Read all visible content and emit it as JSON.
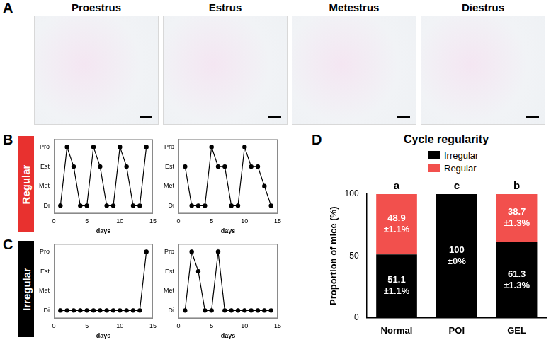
{
  "panels": [
    {
      "letter": "A",
      "images": [
        "Proestrus",
        "Estrus",
        "Metestrus",
        "Diestrus"
      ]
    },
    {
      "letter": "B",
      "label": "Regular",
      "color": "#e8312f"
    },
    {
      "letter": "C",
      "label": "Irregular",
      "color": "#000000"
    },
    {
      "letter": "D"
    }
  ],
  "chart_data": [
    {
      "panel": "B",
      "type": "line",
      "x": [
        1,
        2,
        3,
        4,
        5,
        6,
        7,
        8,
        9,
        10,
        11,
        12,
        13,
        14
      ],
      "values": [
        1,
        4,
        3,
        1,
        1,
        4,
        3,
        1,
        1,
        4,
        3,
        1,
        1,
        4
      ],
      "x_label": "days",
      "xlim": [
        0,
        15
      ],
      "xticks": [
        0,
        5,
        10,
        15
      ],
      "ylim": [
        0.6,
        4.4
      ],
      "yticks": [
        {
          "value": 1,
          "label": "Di"
        },
        {
          "value": 2,
          "label": "Met"
        },
        {
          "value": 3,
          "label": "Est"
        },
        {
          "value": 4,
          "label": "Pro"
        }
      ],
      "color": "#000000",
      "marker": "circle",
      "grid": false
    },
    {
      "panel": "B",
      "type": "line",
      "x": [
        1,
        2,
        3,
        4,
        5,
        6,
        7,
        8,
        9,
        10,
        11,
        12,
        13,
        14
      ],
      "values": [
        3,
        1,
        1,
        1,
        4,
        3,
        3,
        1,
        1,
        4,
        3,
        3,
        2,
        1
      ],
      "x_label": "days",
      "xlim": [
        0,
        15
      ],
      "xticks": [
        0,
        5,
        10,
        15
      ],
      "ylim": [
        0.6,
        4.4
      ],
      "yticks": [
        {
          "value": 1,
          "label": "Di"
        },
        {
          "value": 2,
          "label": "Met"
        },
        {
          "value": 3,
          "label": "Est"
        },
        {
          "value": 4,
          "label": "Pro"
        }
      ],
      "color": "#000000",
      "marker": "circle",
      "grid": false
    },
    {
      "panel": "C",
      "type": "line",
      "x": [
        1,
        2,
        3,
        4,
        5,
        6,
        7,
        8,
        9,
        10,
        11,
        12,
        13,
        14
      ],
      "values": [
        1,
        1,
        1,
        1,
        1,
        1,
        1,
        1,
        1,
        1,
        1,
        1,
        1,
        4
      ],
      "x_label": "days",
      "xlim": [
        0,
        15
      ],
      "xticks": [
        0,
        5,
        10,
        15
      ],
      "ylim": [
        0.6,
        4.4
      ],
      "yticks": [
        {
          "value": 1,
          "label": "Di"
        },
        {
          "value": 2,
          "label": "Met"
        },
        {
          "value": 3,
          "label": "Est"
        },
        {
          "value": 4,
          "label": "Pro"
        }
      ],
      "color": "#000000",
      "marker": "circle",
      "grid": false
    },
    {
      "panel": "C",
      "type": "line",
      "x": [
        1,
        2,
        3,
        4,
        5,
        6,
        7,
        8,
        9,
        10,
        11,
        12,
        13,
        14
      ],
      "values": [
        1,
        4,
        3,
        1,
        1,
        4,
        1,
        1,
        1,
        1,
        1,
        1,
        1,
        1
      ],
      "x_label": "days",
      "xlim": [
        0,
        15
      ],
      "xticks": [
        0,
        5,
        10,
        15
      ],
      "ylim": [
        0.6,
        4.4
      ],
      "yticks": [
        {
          "value": 1,
          "label": "Di"
        },
        {
          "value": 2,
          "label": "Met"
        },
        {
          "value": 3,
          "label": "Est"
        },
        {
          "value": 4,
          "label": "Pro"
        }
      ],
      "color": "#000000",
      "marker": "circle",
      "grid": false
    },
    {
      "panel": "D",
      "type": "bar",
      "title": "Cycle regularity",
      "categories": [
        "Normal",
        "POI",
        "GEL"
      ],
      "stacked": true,
      "series": [
        {
          "name": "Irregular",
          "color": "#000000",
          "values": [
            51.1,
            100,
            61.3
          ],
          "value_labels": [
            [
              "51.1",
              "±1.1%"
            ],
            [
              "100",
              "±0%"
            ],
            [
              "61.3",
              "±1.3%"
            ]
          ]
        },
        {
          "name": "Regular",
          "color": "#f2504d",
          "values": [
            48.9,
            0,
            38.7
          ],
          "value_labels": [
            [
              "48.9",
              "±1.1%"
            ],
            null,
            [
              "38.7",
              "±1.3%"
            ]
          ]
        }
      ],
      "y_label": "Proportion of mice (%)",
      "ylim": [
        0,
        100
      ],
      "yticks": [
        0,
        50,
        100
      ],
      "annotations": [
        {
          "category": "Normal",
          "text": "a"
        },
        {
          "category": "POI",
          "text": "c"
        },
        {
          "category": "GEL",
          "text": "b"
        }
      ],
      "legend": "top",
      "data_labels": true,
      "grid": false
    }
  ]
}
